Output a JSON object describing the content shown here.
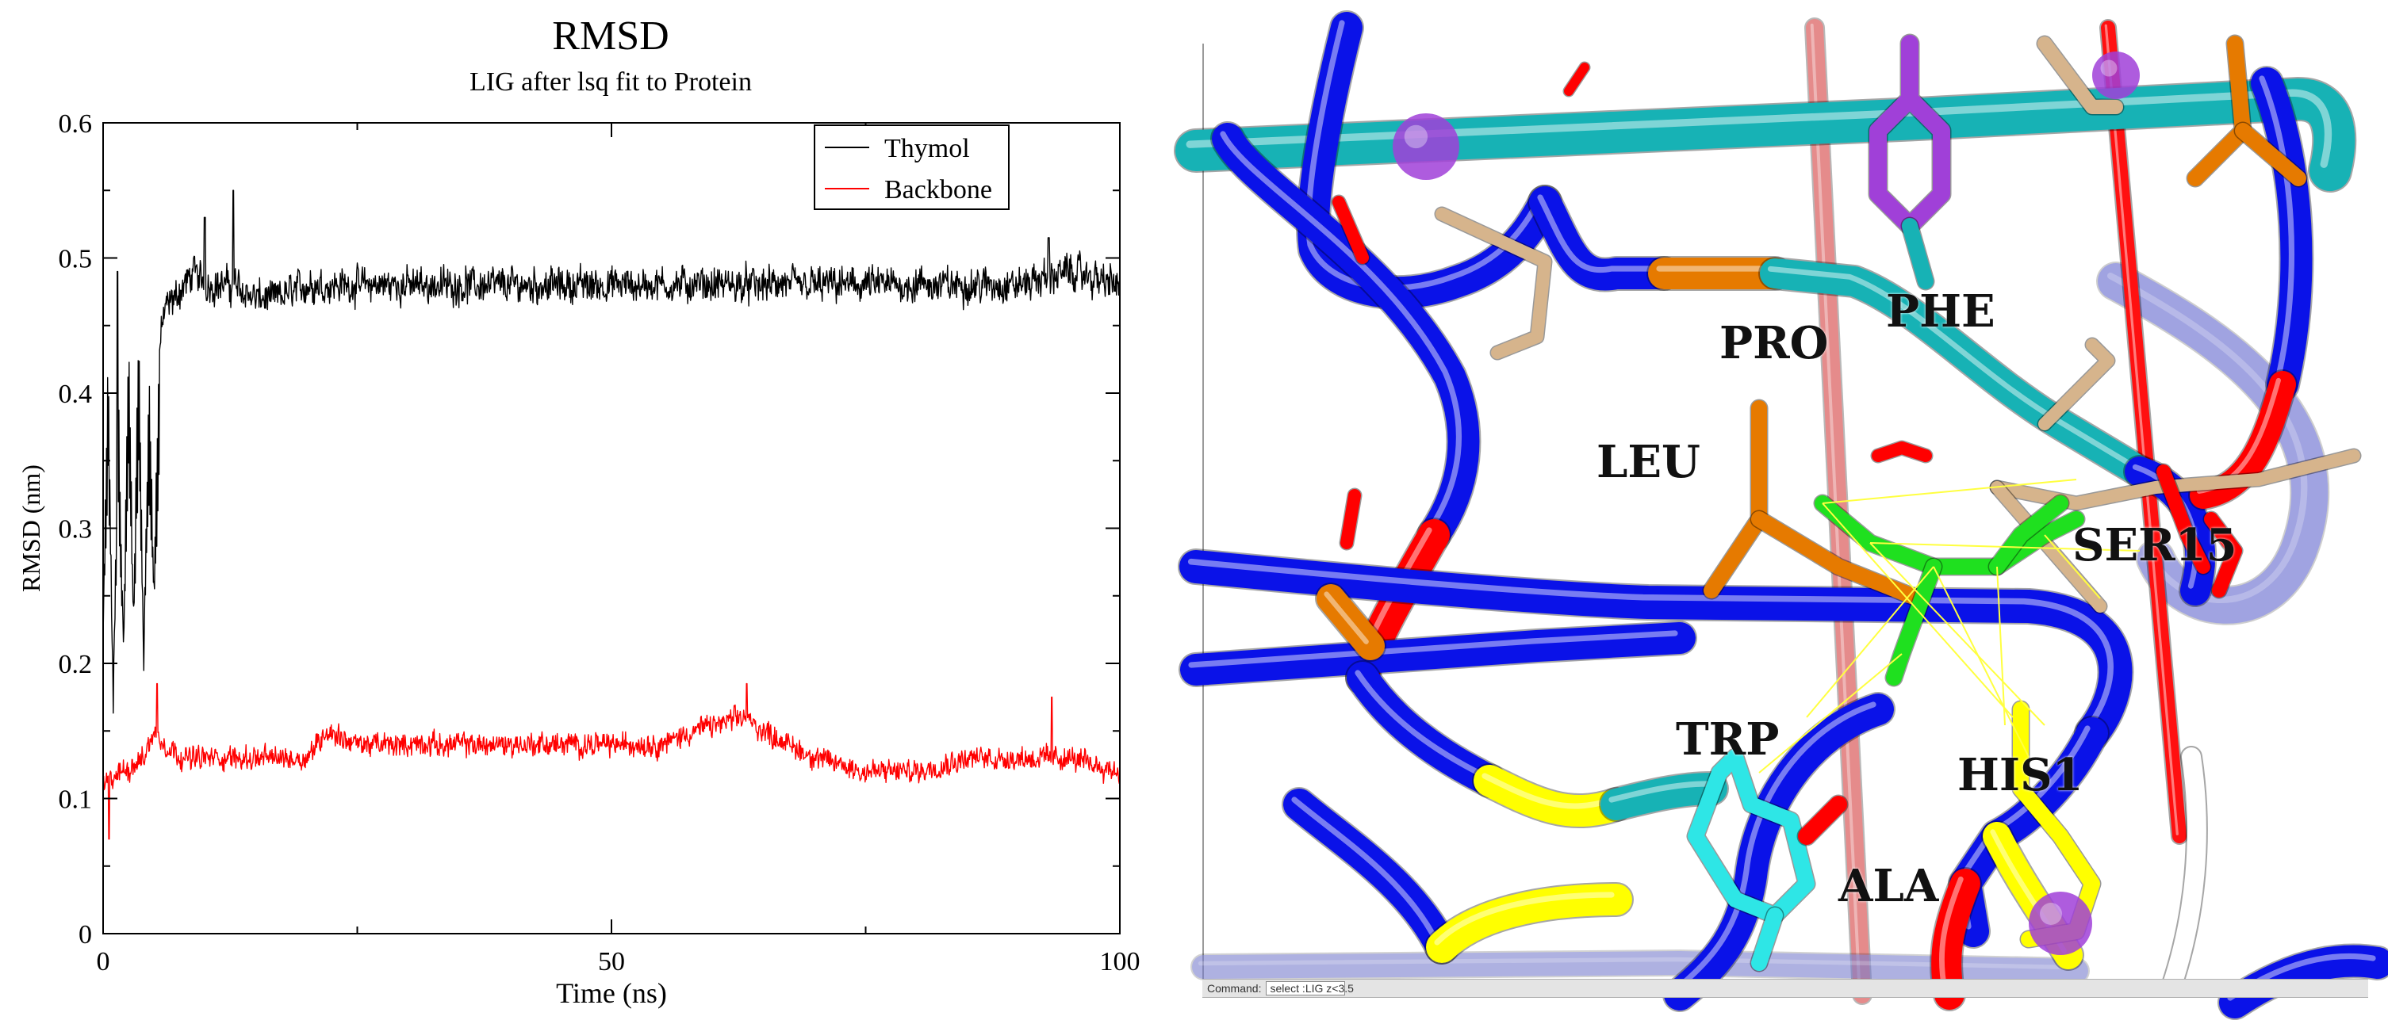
{
  "chart_data": {
    "type": "line",
    "title": "RMSD",
    "subtitle": "LIG after lsq fit to Protein",
    "xlabel": "Time (ns)",
    "ylabel": "RMSD (nm)",
    "xlim": [
      0,
      100
    ],
    "ylim": [
      0,
      0.6
    ],
    "x_ticks": [
      "0",
      "50",
      "100"
    ],
    "y_ticks": [
      "0",
      "0.1",
      "0.2",
      "0.3",
      "0.4",
      "0.5",
      "0.6"
    ],
    "grid": false,
    "legend_position": "top-right",
    "series": [
      {
        "name": "Thymol",
        "color": "#000000",
        "x": [
          0,
          0.5,
          1,
          1.5,
          2,
          2.5,
          3,
          3.5,
          4,
          4.5,
          5,
          5.5,
          6,
          7,
          8,
          9,
          10,
          12,
          13,
          15,
          17,
          20,
          25,
          30,
          35,
          40,
          45,
          50,
          55,
          60,
          65,
          70,
          75,
          80,
          85,
          90,
          95,
          100
        ],
        "y": [
          0.22,
          0.43,
          0.16,
          0.4,
          0.21,
          0.44,
          0.24,
          0.45,
          0.2,
          0.42,
          0.26,
          0.43,
          0.46,
          0.47,
          0.48,
          0.49,
          0.48,
          0.48,
          0.48,
          0.47,
          0.47,
          0.48,
          0.48,
          0.48,
          0.48,
          0.48,
          0.48,
          0.48,
          0.48,
          0.48,
          0.48,
          0.48,
          0.48,
          0.48,
          0.48,
          0.48,
          0.49,
          0.48
        ],
        "noise": 0.012,
        "peaks": [
          {
            "x": 1.4,
            "y": 0.49
          },
          {
            "x": 12.8,
            "y": 0.55
          },
          {
            "x": 10,
            "y": 0.53
          },
          {
            "x": 93,
            "y": 0.515
          }
        ]
      },
      {
        "name": "Backbone",
        "color": "#ff0000",
        "x": [
          0,
          2,
          4,
          5,
          6,
          8,
          10,
          15,
          20,
          22,
          25,
          30,
          35,
          40,
          45,
          50,
          55,
          58,
          63,
          65,
          70,
          75,
          80,
          85,
          90,
          95,
          100
        ],
        "y": [
          0.11,
          0.12,
          0.13,
          0.15,
          0.14,
          0.13,
          0.13,
          0.13,
          0.13,
          0.15,
          0.14,
          0.14,
          0.14,
          0.14,
          0.14,
          0.14,
          0.14,
          0.15,
          0.16,
          0.15,
          0.13,
          0.12,
          0.12,
          0.13,
          0.13,
          0.13,
          0.12
        ],
        "noise": 0.008,
        "peaks": [
          {
            "x": 0.6,
            "y": 0.07
          },
          {
            "x": 63.3,
            "y": 0.185
          },
          {
            "x": 93.3,
            "y": 0.175
          },
          {
            "x": 5.3,
            "y": 0.185
          }
        ]
      }
    ]
  },
  "molecule_view": {
    "residue_labels": [
      "PRO",
      "PHE",
      "LEU",
      "SER15",
      "TRP",
      "HIS1",
      "ALA"
    ],
    "command_label": "Command:",
    "command_value": "select :LIG z<3.5",
    "colors": {
      "backbone": "#0a12e8",
      "teal": "#17b2b5",
      "orange": "#e67a00",
      "tan": "#d6b48c",
      "green": "#1fe01f",
      "cyan": "#2ee6e6",
      "yellow": "#ffff00",
      "red": "#ff0000",
      "purple": "#a040d8",
      "white": "#ffffff",
      "contact": "#ffff40"
    }
  }
}
